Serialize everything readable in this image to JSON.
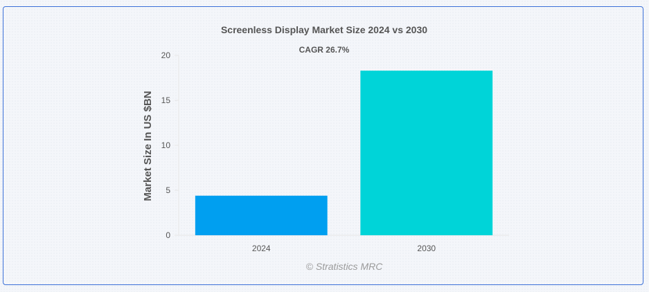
{
  "chart_data": {
    "type": "bar",
    "title": "Screenless Display Market Size 2024 vs 2030",
    "subtitle": "CAGR 26.7%",
    "categories": [
      "2024",
      "2030"
    ],
    "values": [
      4.4,
      18.3
    ],
    "colors": [
      "#009ff0",
      "#00d4d8"
    ],
    "ylabel": "Market Size In US $BN",
    "xlabel": "",
    "ylim": [
      0,
      20
    ],
    "yticks": [
      0,
      5,
      10,
      15,
      20
    ],
    "grid": false,
    "legend": "none"
  },
  "watermark": "© Stratistics MRC"
}
